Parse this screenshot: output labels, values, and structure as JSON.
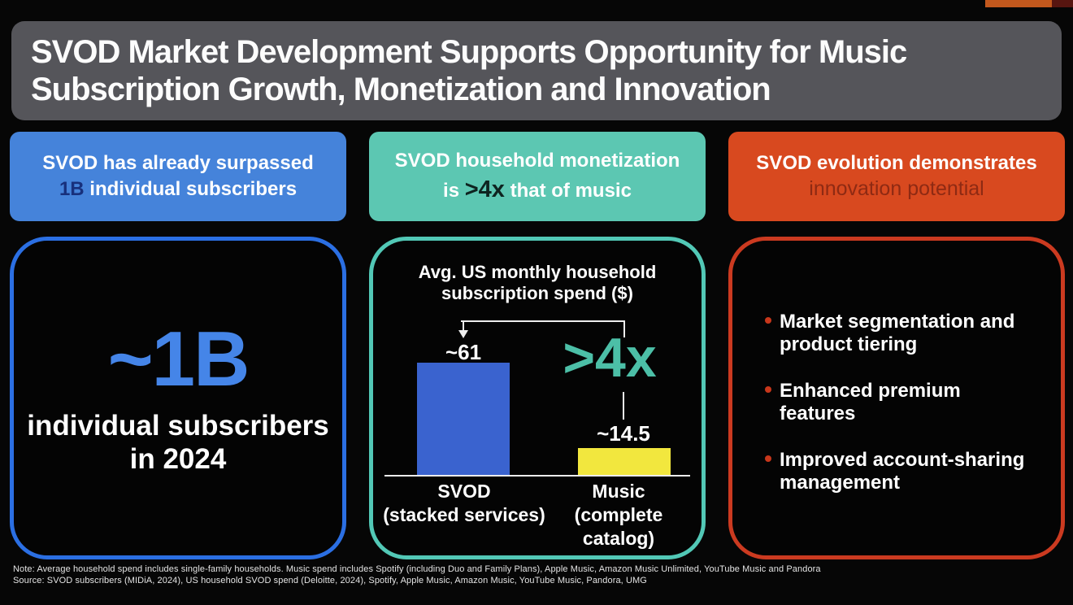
{
  "slide_title": {
    "line1": "SVOD Market Development Supports Opportunity for Music",
    "line2": "Subscription Growth, Monetization and Innovation"
  },
  "header_cards": {
    "subscribers": {
      "line1": "SVOD has already surpassed",
      "highlight": "1B",
      "line2_rest": " individual subscribers"
    },
    "monetization": {
      "line1": "SVOD household monetization",
      "line2_pre": "is ",
      "highlight": ">4x",
      "line2_post": " that of music"
    },
    "evolution": {
      "line1": "SVOD evolution demonstrates",
      "line2": "innovation potential"
    }
  },
  "panels": {
    "subscribers": {
      "big_number": "~1B",
      "caption_line1": "individual subscribers",
      "caption_line2": "in 2024"
    },
    "innovation": {
      "bullets": [
        {
          "line1": "Market segmentation and",
          "line2": "product tiering"
        },
        {
          "line1": "Enhanced premium",
          "line2": "features"
        },
        {
          "line1": "Improved account-sharing",
          "line2": "management"
        }
      ]
    }
  },
  "chart_data": {
    "type": "bar",
    "title": "Avg. US monthly household subscription spend ($)",
    "title_lines": [
      "Avg. US monthly household",
      "subscription spend ($)"
    ],
    "categories": [
      "SVOD (stacked services)",
      "Music (complete catalog)"
    ],
    "category_lines": [
      [
        "SVOD",
        "(stacked services)"
      ],
      [
        "Music",
        "(complete catalog)"
      ]
    ],
    "values": [
      61,
      14.5
    ],
    "value_labels": [
      "~61",
      "~14.5"
    ],
    "bar_colors": [
      "#3a63cf",
      "#f2e73e"
    ],
    "annotation": ">4x",
    "annotation_color": "#4cbfa7",
    "ylabel": "",
    "xlabel": "",
    "ylim": [
      0,
      70
    ],
    "grid": false,
    "legend": false
  },
  "footer": {
    "note": "Note: Average household spend includes single-family households. Music spend includes Spotify (including Duo and Family Plans), Apple Music, Amazon Music Unlimited, YouTube Music and Pandora",
    "source": "Source: SVOD subscribers (MIDiA, 2024), US household SVOD spend (Deloitte, 2024), Spotify, Apple Music, Amazon Music, YouTube Music, Pandora, UMG"
  },
  "colors": {
    "card_blue": "#4583da",
    "card_teal": "#5cc7b2",
    "card_red": "#d8491f",
    "panel_blue_border": "#2b6fe3",
    "panel_teal_border": "#52c8b6",
    "panel_red_border": "#cb3a20",
    "big_number_blue": "#4585e8",
    "bar_blue": "#3a63cf",
    "bar_yellow": "#f2e73e",
    "annotation_teal": "#4cbfa7",
    "bullet_red": "#c8371b",
    "highlight_navy": "#17307c",
    "highlight_dark": "#0e2420",
    "dim_red": "#8e2a13",
    "title_bar_gray": "#55555a"
  }
}
